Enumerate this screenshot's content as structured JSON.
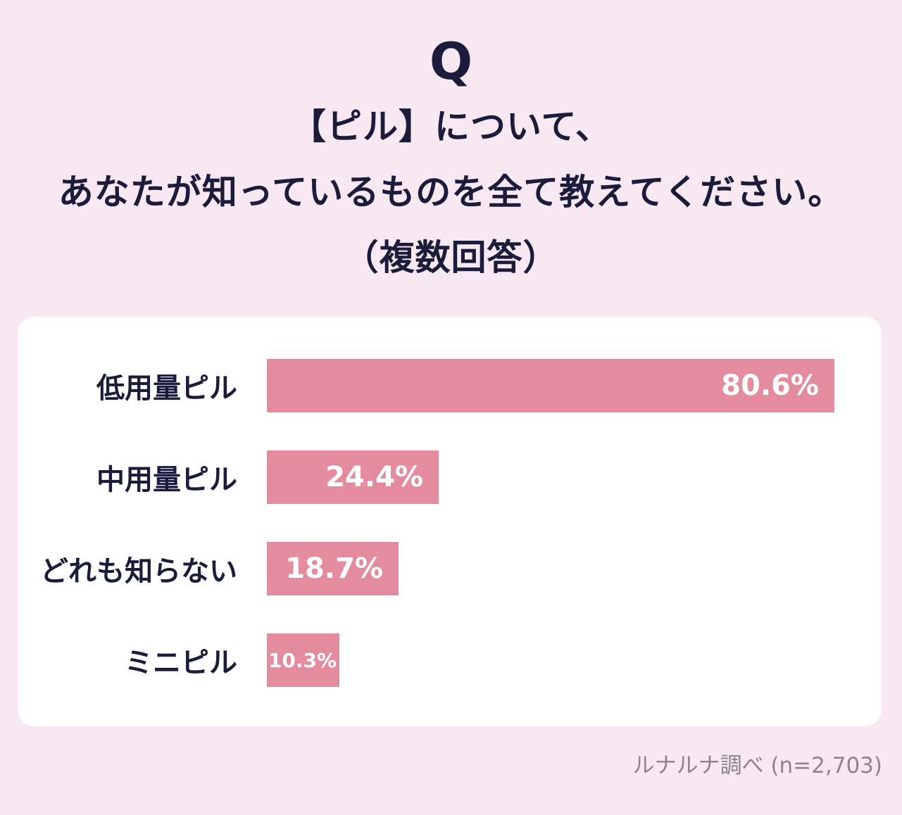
{
  "colors": {
    "background": "#f8e8f1",
    "card": "#ffffff",
    "bar": "#e58b9e",
    "text_navy": "#1b1b3c",
    "value_text": "#ffffff",
    "source_gray": "#8b868d"
  },
  "header": {
    "q_mark": "Q",
    "title_lines": [
      "【ピル】について、",
      "あなたが知っているものを全て教えてください。",
      "（複数回答）"
    ]
  },
  "chart_data": {
    "type": "bar",
    "orientation": "horizontal",
    "categories": [
      "低用量ピル",
      "中用量ピル",
      "どれも知らない",
      "ミニピル"
    ],
    "values": [
      80.6,
      24.4,
      18.7,
      10.3
    ],
    "value_labels": [
      "80.6%",
      "24.4%",
      "18.7%",
      "10.3%"
    ],
    "xlim": [
      0,
      100
    ],
    "grid": false,
    "legend": false,
    "bar_color": "#e58b9e",
    "value_label_position": "inside-right",
    "value_label_color": "#ffffff"
  },
  "footer": {
    "source": "ルナルナ調べ (n=2,703)"
  }
}
